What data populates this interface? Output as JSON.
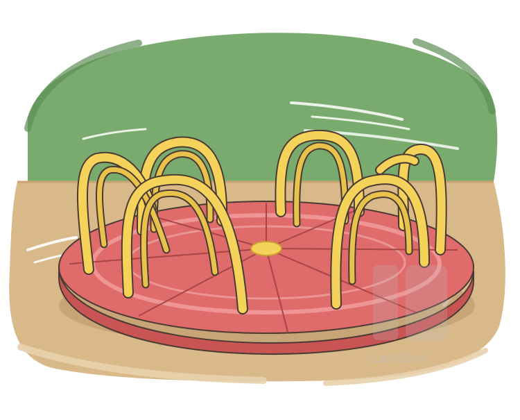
{
  "image": {
    "subject": "merry-go-round",
    "colors": {
      "background": "#7aab6e",
      "ground": "#d9b98a",
      "platform": "#e06b6b",
      "platform_light": "#f2a0a0",
      "platform_dark": "#c95454",
      "handle": "#f5d25a",
      "handle_shadow": "#d9a93a",
      "outline": "#4a3a34"
    }
  },
  "watermark": {
    "text": "LanGeek"
  }
}
